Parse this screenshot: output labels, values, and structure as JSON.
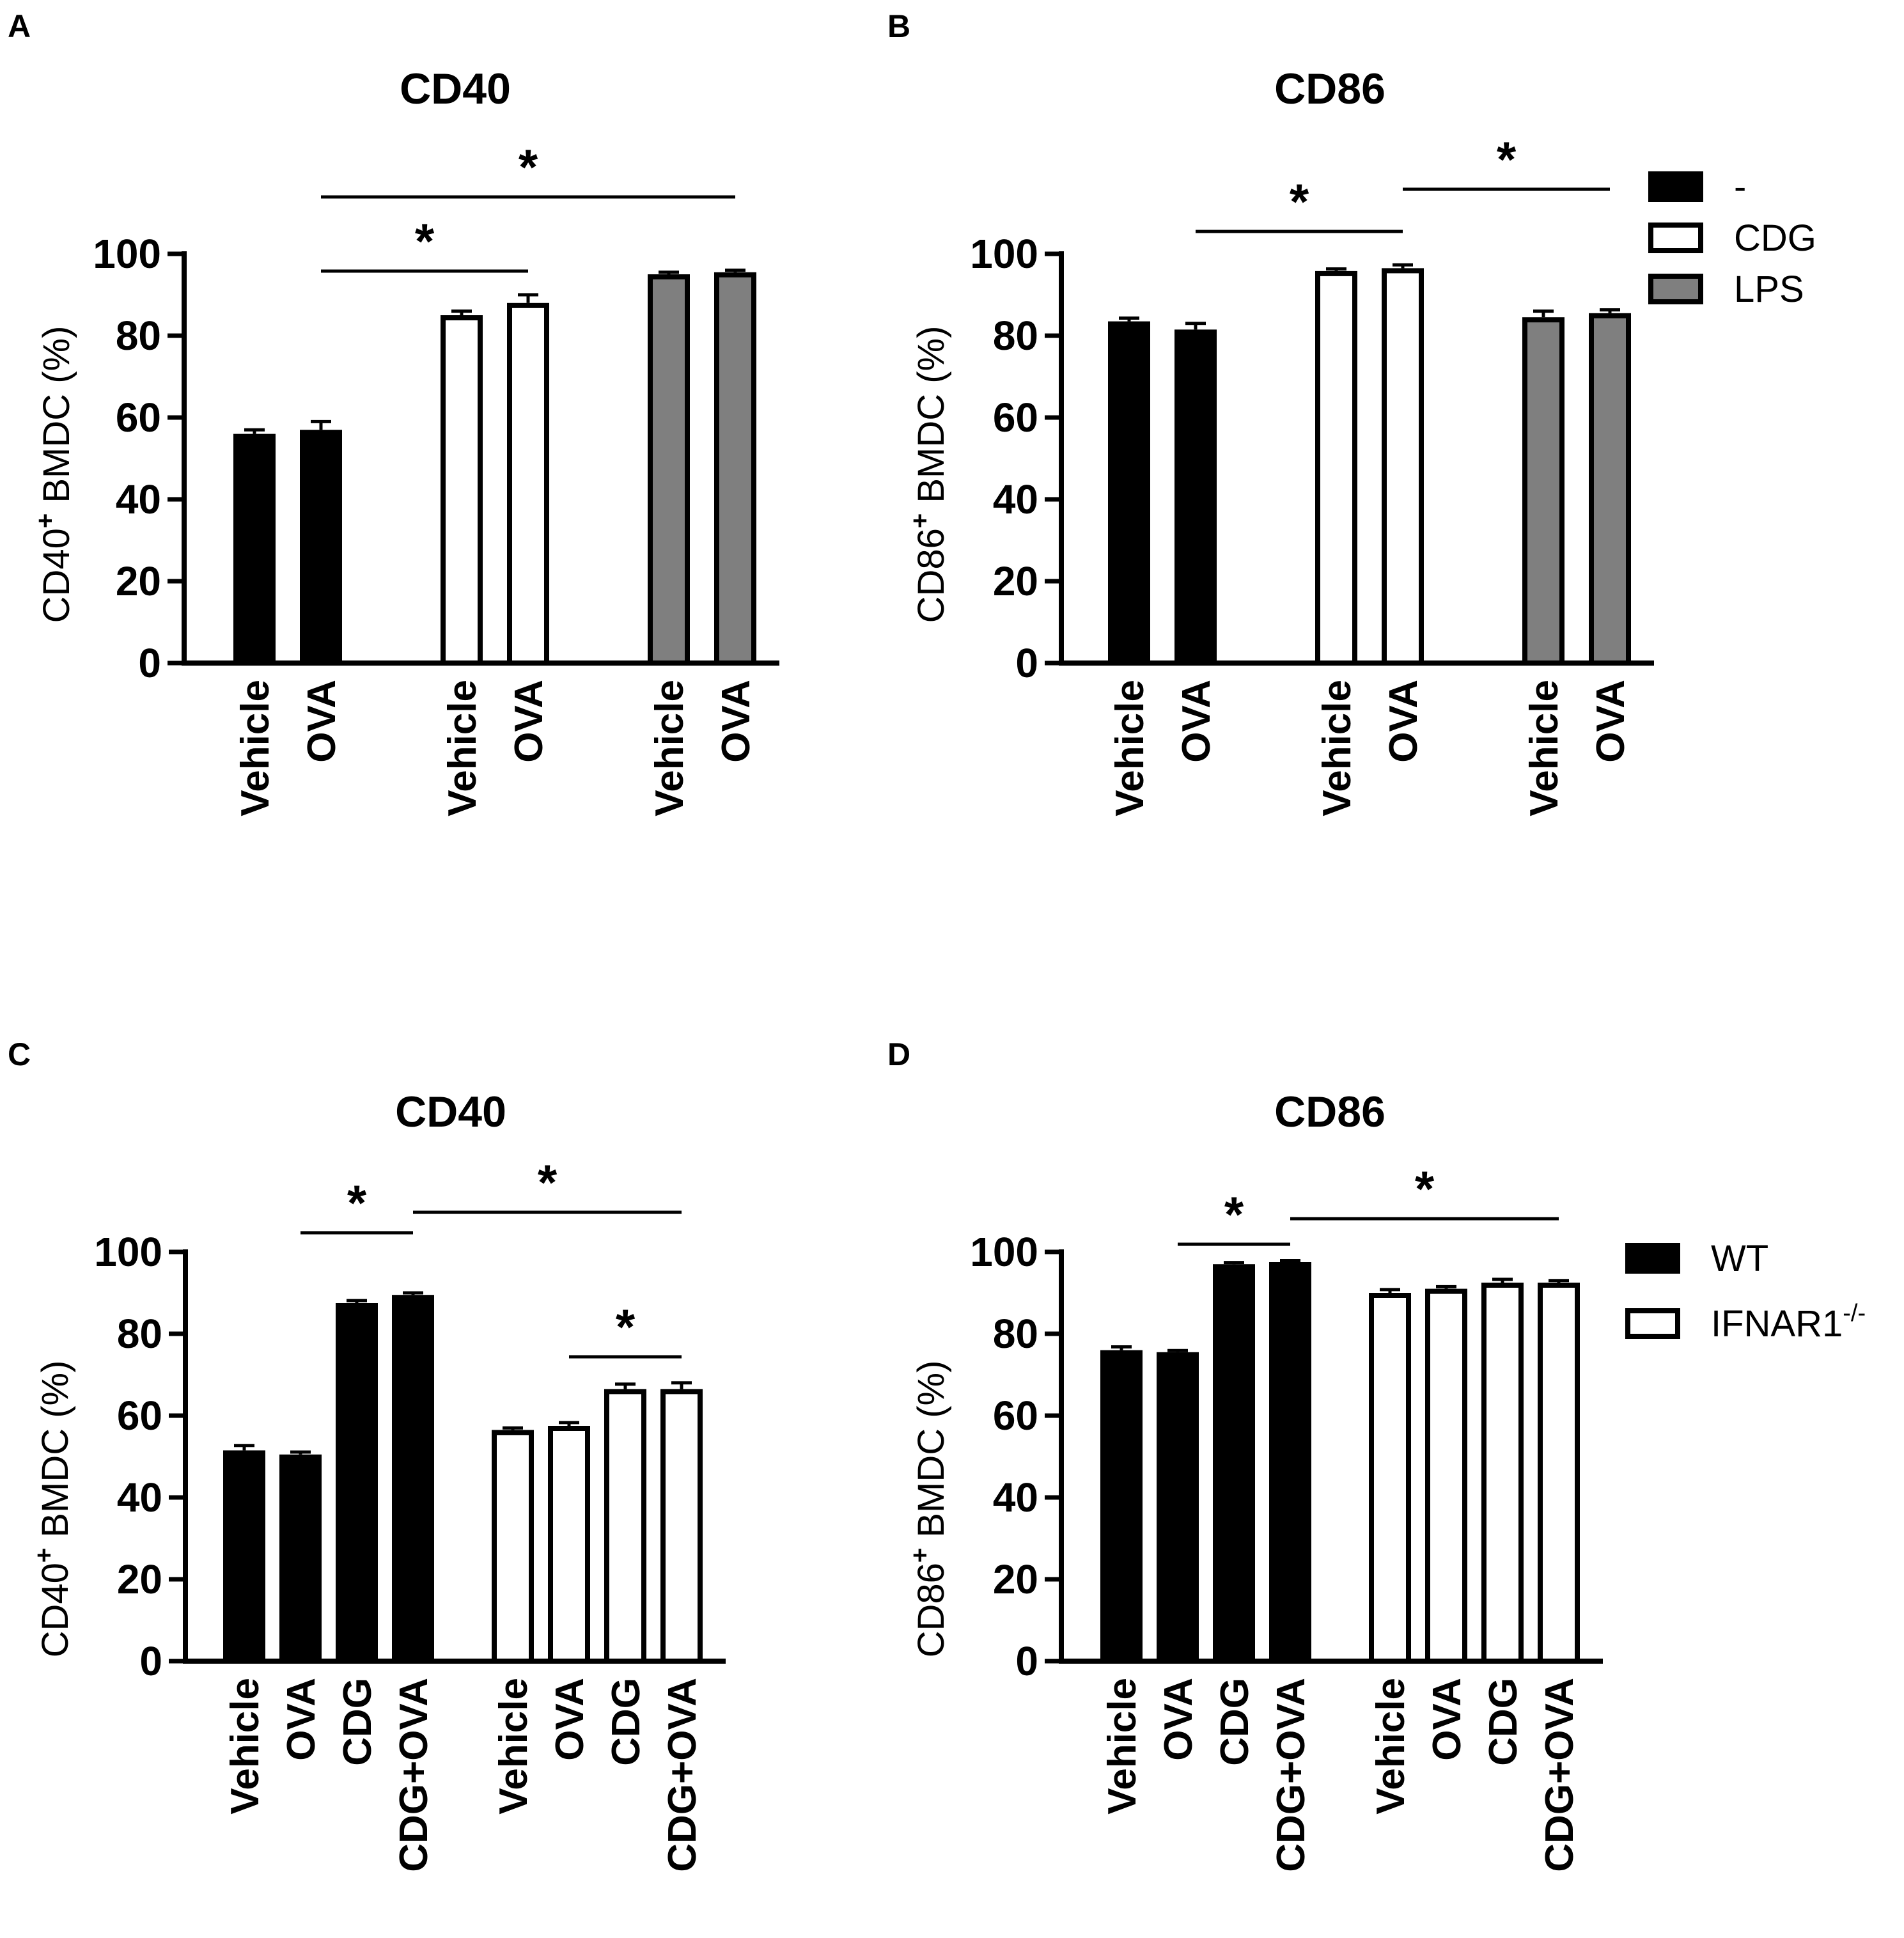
{
  "legends": [
    {
      "entries": [
        {
          "label": "-",
          "fill": "#000000"
        },
        {
          "label": "CDG",
          "fill": "#ffffff"
        },
        {
          "label": "LPS",
          "fill": "#7f7f7f"
        }
      ]
    },
    {
      "entries": [
        {
          "label": "WT",
          "fill": "#000000"
        },
        {
          "label": "IFNAR1",
          "sup": "-/-",
          "fill": "#ffffff"
        }
      ]
    }
  ],
  "chart_data": [
    {
      "panel": "A",
      "type": "bar",
      "title": "CD40",
      "ylabel_pre": "CD40",
      "ylabel_sup": "+",
      "ylabel_post": " BMDC (%)",
      "ylim": [
        0,
        100
      ],
      "yticks": [
        0,
        20,
        40,
        60,
        80,
        100
      ],
      "groups": [
        {
          "legend": "-",
          "fill": "#000000",
          "categories": [
            "Vehicle",
            "OVA"
          ],
          "values": [
            56,
            57
          ],
          "errors": [
            1,
            2
          ]
        },
        {
          "legend": "CDG",
          "fill": "#ffffff",
          "categories": [
            "Vehicle",
            "OVA"
          ],
          "values": [
            85,
            88
          ],
          "errors": [
            1,
            2
          ]
        },
        {
          "legend": "LPS",
          "fill": "#7f7f7f",
          "categories": [
            "Vehicle",
            "OVA"
          ],
          "values": [
            95,
            95.5
          ],
          "errors": [
            0.5,
            0.5
          ]
        }
      ],
      "significance": [
        {
          "from": 1,
          "to": 3,
          "level": 1,
          "label": "*"
        },
        {
          "from": 1,
          "to": 5,
          "level": 2,
          "label": "*"
        }
      ]
    },
    {
      "panel": "B",
      "type": "bar",
      "title": "CD86",
      "ylabel_pre": "CD86",
      "ylabel_sup": "+",
      "ylabel_post": " BMDC (%)",
      "ylim": [
        0,
        100
      ],
      "yticks": [
        0,
        20,
        40,
        60,
        80,
        100
      ],
      "groups": [
        {
          "legend": "-",
          "fill": "#000000",
          "categories": [
            "Vehicle",
            "OVA"
          ],
          "values": [
            83.5,
            81.5
          ],
          "errors": [
            0.8,
            1.5
          ]
        },
        {
          "legend": "CDG",
          "fill": "#ffffff",
          "categories": [
            "Vehicle",
            "OVA"
          ],
          "values": [
            95.8,
            96.5
          ],
          "errors": [
            0.5,
            0.8
          ]
        },
        {
          "legend": "LPS",
          "fill": "#7f7f7f",
          "categories": [
            "Vehicle",
            "OVA"
          ],
          "values": [
            84.5,
            85.5
          ],
          "errors": [
            1.5,
            0.8
          ]
        }
      ],
      "significance": [
        {
          "from": 1,
          "to": 3,
          "level": 1,
          "label": "*"
        },
        {
          "from": 3,
          "to": 5,
          "level": 2,
          "label": "*"
        }
      ]
    },
    {
      "panel": "C",
      "type": "bar",
      "title": "CD40",
      "ylabel_pre": "CD40",
      "ylabel_sup": "+",
      "ylabel_post": " BMDC (%)",
      "ylim": [
        0,
        100
      ],
      "yticks": [
        0,
        20,
        40,
        60,
        80,
        100
      ],
      "groups": [
        {
          "legend": "WT",
          "fill": "#000000",
          "categories": [
            "Vehicle",
            "OVA",
            "CDG",
            "CDG+OVA"
          ],
          "values": [
            51.5,
            50.5,
            87.5,
            89.5
          ],
          "errors": [
            1.2,
            0.6,
            0.6,
            0.5
          ]
        },
        {
          "legend": "IFNAR1-/-",
          "fill": "#ffffff",
          "categories": [
            "Vehicle",
            "OVA",
            "CDG",
            "CDG+OVA"
          ],
          "values": [
            56.5,
            57.5,
            66.5,
            66.5
          ],
          "errors": [
            0.5,
            0.8,
            1.2,
            1.5
          ]
        }
      ],
      "significance": [
        {
          "from": 1,
          "to": 3,
          "level": 2,
          "label": "*"
        },
        {
          "from": 3,
          "to": 7,
          "level": 3,
          "label": "*"
        },
        {
          "from": 5,
          "to": 7,
          "level": 1,
          "label": "*"
        }
      ]
    },
    {
      "panel": "D",
      "type": "bar",
      "title": "CD86",
      "ylabel_pre": "CD86",
      "ylabel_sup": "+",
      "ylabel_post": " BMDC (%)",
      "ylim": [
        0,
        100
      ],
      "yticks": [
        0,
        20,
        40,
        60,
        80,
        100
      ],
      "groups": [
        {
          "legend": "WT",
          "fill": "#000000",
          "categories": [
            "Vehicle",
            "OVA",
            "CDG",
            "CDG+OVA"
          ],
          "values": [
            76,
            75.5,
            97,
            97.5
          ],
          "errors": [
            0.8,
            0.4,
            0.4,
            0.4
          ]
        },
        {
          "legend": "IFNAR1-/-",
          "fill": "#ffffff",
          "categories": [
            "Vehicle",
            "OVA",
            "CDG",
            "CDG+OVA"
          ],
          "values": [
            90,
            91,
            92.5,
            92.5
          ],
          "errors": [
            0.8,
            0.5,
            0.8,
            0.5
          ]
        }
      ],
      "significance": [
        {
          "from": 1,
          "to": 3,
          "level": 1,
          "label": "*"
        },
        {
          "from": 3,
          "to": 7,
          "level": 2,
          "label": "*"
        }
      ]
    }
  ]
}
